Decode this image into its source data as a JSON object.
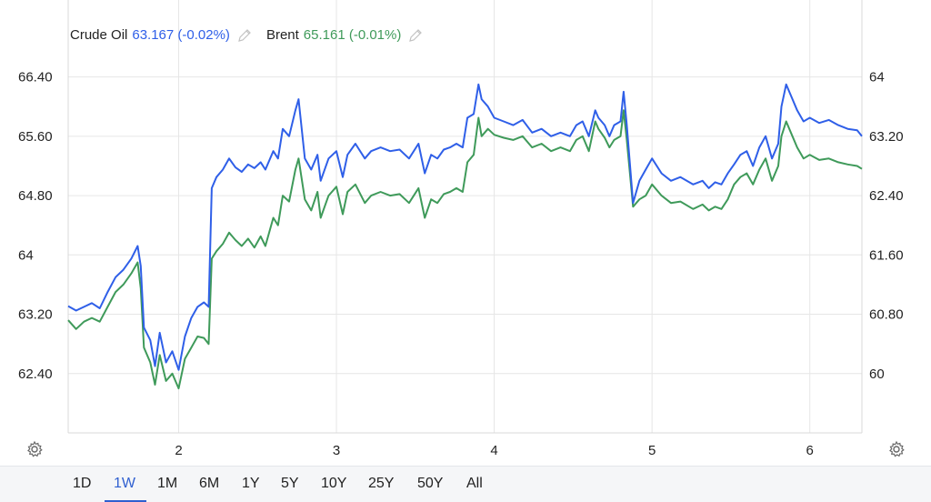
{
  "legend": {
    "series": [
      {
        "name": "Crude Oil",
        "value_text": "63.167 (-0.02%)",
        "color": "#2f5fe8"
      },
      {
        "name": "Brent",
        "value_text": "65.161 (-0.01%)",
        "color": "#3f9a5a"
      }
    ],
    "edit_icon": "pencil-icon"
  },
  "range_buttons": [
    {
      "label": "1D",
      "active": false
    },
    {
      "label": "1W",
      "active": true
    },
    {
      "label": "1M",
      "active": false
    },
    {
      "label": "6M",
      "active": false
    },
    {
      "label": "1Y",
      "active": false
    },
    {
      "label": "5Y",
      "active": false
    },
    {
      "label": "10Y",
      "active": false
    },
    {
      "label": "25Y",
      "active": false
    },
    {
      "label": "50Y",
      "active": false
    },
    {
      "label": "All",
      "active": false
    }
  ],
  "settings_icon": "gear-icon",
  "chart_data": {
    "type": "line",
    "grid": true,
    "x_ticks": [
      "2",
      "3",
      "4",
      "5",
      "6"
    ],
    "x_tick_positions": [
      2,
      3,
      4,
      5,
      6
    ],
    "x_range": [
      1.3,
      6.33
    ],
    "left_axis": {
      "ticks": [
        "62.40",
        "63.20",
        "64",
        "64.80",
        "65.60",
        "66.40"
      ],
      "ylim": [
        61.6,
        66.8
      ]
    },
    "right_axis": {
      "ticks": [
        "60",
        "60.80",
        "61.60",
        "62.40",
        "63.20",
        "64"
      ],
      "ylim": [
        59.2,
        64.4
      ]
    },
    "series": [
      {
        "name": "Crude Oil",
        "axis": "right",
        "color": "#2f5fe8",
        "points": [
          [
            1.3,
            60.91
          ],
          [
            1.35,
            60.85
          ],
          [
            1.4,
            60.9
          ],
          [
            1.45,
            60.95
          ],
          [
            1.5,
            60.88
          ],
          [
            1.55,
            61.1
          ],
          [
            1.6,
            61.3
          ],
          [
            1.65,
            61.4
          ],
          [
            1.7,
            61.55
          ],
          [
            1.74,
            61.72
          ],
          [
            1.76,
            61.45
          ],
          [
            1.78,
            60.62
          ],
          [
            1.82,
            60.45
          ],
          [
            1.85,
            60.1
          ],
          [
            1.88,
            60.55
          ],
          [
            1.92,
            60.15
          ],
          [
            1.96,
            60.3
          ],
          [
            2.0,
            60.05
          ],
          [
            2.04,
            60.5
          ],
          [
            2.08,
            60.75
          ],
          [
            2.12,
            60.9
          ],
          [
            2.16,
            60.96
          ],
          [
            2.19,
            60.9
          ],
          [
            2.21,
            62.5
          ],
          [
            2.24,
            62.65
          ],
          [
            2.28,
            62.75
          ],
          [
            2.32,
            62.9
          ],
          [
            2.36,
            62.78
          ],
          [
            2.4,
            62.72
          ],
          [
            2.44,
            62.82
          ],
          [
            2.48,
            62.77
          ],
          [
            2.52,
            62.85
          ],
          [
            2.55,
            62.75
          ],
          [
            2.6,
            63.0
          ],
          [
            2.63,
            62.9
          ],
          [
            2.66,
            63.3
          ],
          [
            2.7,
            63.2
          ],
          [
            2.74,
            63.55
          ],
          [
            2.76,
            63.7
          ],
          [
            2.8,
            62.9
          ],
          [
            2.84,
            62.75
          ],
          [
            2.88,
            62.95
          ],
          [
            2.9,
            62.6
          ],
          [
            2.95,
            62.9
          ],
          [
            3.0,
            63.0
          ],
          [
            3.04,
            62.65
          ],
          [
            3.07,
            62.95
          ],
          [
            3.12,
            63.1
          ],
          [
            3.18,
            62.9
          ],
          [
            3.22,
            63.0
          ],
          [
            3.28,
            63.05
          ],
          [
            3.34,
            63.0
          ],
          [
            3.4,
            63.02
          ],
          [
            3.46,
            62.9
          ],
          [
            3.52,
            63.1
          ],
          [
            3.56,
            62.7
          ],
          [
            3.6,
            62.95
          ],
          [
            3.64,
            62.9
          ],
          [
            3.68,
            63.02
          ],
          [
            3.72,
            63.05
          ],
          [
            3.76,
            63.1
          ],
          [
            3.8,
            63.05
          ],
          [
            3.83,
            63.45
          ],
          [
            3.87,
            63.5
          ],
          [
            3.9,
            63.9
          ],
          [
            3.92,
            63.7
          ],
          [
            3.96,
            63.6
          ],
          [
            4.0,
            63.45
          ],
          [
            4.06,
            63.4
          ],
          [
            4.12,
            63.35
          ],
          [
            4.18,
            63.42
          ],
          [
            4.24,
            63.25
          ],
          [
            4.3,
            63.3
          ],
          [
            4.36,
            63.2
          ],
          [
            4.42,
            63.25
          ],
          [
            4.48,
            63.2
          ],
          [
            4.52,
            63.35
          ],
          [
            4.56,
            63.4
          ],
          [
            4.6,
            63.2
          ],
          [
            4.64,
            63.55
          ],
          [
            4.66,
            63.45
          ],
          [
            4.7,
            63.35
          ],
          [
            4.73,
            63.2
          ],
          [
            4.76,
            63.35
          ],
          [
            4.8,
            63.4
          ],
          [
            4.82,
            63.8
          ],
          [
            4.84,
            63.35
          ],
          [
            4.88,
            62.3
          ],
          [
            4.92,
            62.6
          ],
          [
            4.96,
            62.75
          ],
          [
            5.0,
            62.9
          ],
          [
            5.06,
            62.7
          ],
          [
            5.12,
            62.6
          ],
          [
            5.18,
            62.65
          ],
          [
            5.26,
            62.55
          ],
          [
            5.32,
            62.6
          ],
          [
            5.36,
            62.5
          ],
          [
            5.4,
            62.58
          ],
          [
            5.44,
            62.55
          ],
          [
            5.48,
            62.7
          ],
          [
            5.52,
            62.82
          ],
          [
            5.56,
            62.95
          ],
          [
            5.6,
            63.0
          ],
          [
            5.64,
            62.8
          ],
          [
            5.68,
            63.05
          ],
          [
            5.72,
            63.2
          ],
          [
            5.76,
            62.9
          ],
          [
            5.8,
            63.1
          ],
          [
            5.82,
            63.6
          ],
          [
            5.85,
            63.9
          ],
          [
            5.88,
            63.75
          ],
          [
            5.92,
            63.55
          ],
          [
            5.96,
            63.4
          ],
          [
            6.0,
            63.45
          ],
          [
            6.06,
            63.38
          ],
          [
            6.12,
            63.42
          ],
          [
            6.18,
            63.35
          ],
          [
            6.24,
            63.3
          ],
          [
            6.3,
            63.28
          ],
          [
            6.33,
            63.2
          ]
        ]
      },
      {
        "name": "Brent",
        "axis": "left",
        "color": "#3f9a5a",
        "points": [
          [
            1.3,
            63.12
          ],
          [
            1.35,
            63.0
          ],
          [
            1.4,
            63.1
          ],
          [
            1.45,
            63.15
          ],
          [
            1.5,
            63.1
          ],
          [
            1.55,
            63.3
          ],
          [
            1.6,
            63.5
          ],
          [
            1.65,
            63.6
          ],
          [
            1.7,
            63.75
          ],
          [
            1.74,
            63.9
          ],
          [
            1.76,
            63.55
          ],
          [
            1.78,
            62.75
          ],
          [
            1.82,
            62.55
          ],
          [
            1.85,
            62.25
          ],
          [
            1.88,
            62.65
          ],
          [
            1.92,
            62.3
          ],
          [
            1.96,
            62.4
          ],
          [
            2.0,
            62.2
          ],
          [
            2.04,
            62.6
          ],
          [
            2.08,
            62.75
          ],
          [
            2.12,
            62.9
          ],
          [
            2.16,
            62.88
          ],
          [
            2.19,
            62.8
          ],
          [
            2.21,
            63.95
          ],
          [
            2.24,
            64.05
          ],
          [
            2.28,
            64.15
          ],
          [
            2.32,
            64.3
          ],
          [
            2.36,
            64.2
          ],
          [
            2.4,
            64.12
          ],
          [
            2.44,
            64.22
          ],
          [
            2.48,
            64.1
          ],
          [
            2.52,
            64.25
          ],
          [
            2.55,
            64.12
          ],
          [
            2.6,
            64.5
          ],
          [
            2.63,
            64.4
          ],
          [
            2.66,
            64.8
          ],
          [
            2.7,
            64.72
          ],
          [
            2.74,
            65.15
          ],
          [
            2.76,
            65.3
          ],
          [
            2.8,
            64.75
          ],
          [
            2.84,
            64.6
          ],
          [
            2.88,
            64.85
          ],
          [
            2.9,
            64.5
          ],
          [
            2.95,
            64.8
          ],
          [
            3.0,
            64.92
          ],
          [
            3.04,
            64.55
          ],
          [
            3.07,
            64.85
          ],
          [
            3.12,
            64.95
          ],
          [
            3.18,
            64.7
          ],
          [
            3.22,
            64.8
          ],
          [
            3.28,
            64.85
          ],
          [
            3.34,
            64.8
          ],
          [
            3.4,
            64.82
          ],
          [
            3.46,
            64.7
          ],
          [
            3.52,
            64.9
          ],
          [
            3.56,
            64.5
          ],
          [
            3.6,
            64.75
          ],
          [
            3.64,
            64.7
          ],
          [
            3.68,
            64.82
          ],
          [
            3.72,
            64.85
          ],
          [
            3.76,
            64.9
          ],
          [
            3.8,
            64.85
          ],
          [
            3.83,
            65.25
          ],
          [
            3.87,
            65.35
          ],
          [
            3.9,
            65.85
          ],
          [
            3.92,
            65.6
          ],
          [
            3.96,
            65.7
          ],
          [
            4.0,
            65.62
          ],
          [
            4.06,
            65.58
          ],
          [
            4.12,
            65.55
          ],
          [
            4.18,
            65.6
          ],
          [
            4.24,
            65.45
          ],
          [
            4.3,
            65.5
          ],
          [
            4.36,
            65.4
          ],
          [
            4.42,
            65.45
          ],
          [
            4.48,
            65.4
          ],
          [
            4.52,
            65.55
          ],
          [
            4.56,
            65.6
          ],
          [
            4.6,
            65.4
          ],
          [
            4.64,
            65.8
          ],
          [
            4.66,
            65.7
          ],
          [
            4.7,
            65.58
          ],
          [
            4.73,
            65.45
          ],
          [
            4.76,
            65.55
          ],
          [
            4.8,
            65.6
          ],
          [
            4.82,
            65.95
          ],
          [
            4.84,
            65.55
          ],
          [
            4.88,
            64.65
          ],
          [
            4.92,
            64.75
          ],
          [
            4.96,
            64.8
          ],
          [
            5.0,
            64.95
          ],
          [
            5.06,
            64.8
          ],
          [
            5.12,
            64.7
          ],
          [
            5.18,
            64.72
          ],
          [
            5.26,
            64.62
          ],
          [
            5.32,
            64.68
          ],
          [
            5.36,
            64.6
          ],
          [
            5.4,
            64.65
          ],
          [
            5.44,
            64.62
          ],
          [
            5.48,
            64.75
          ],
          [
            5.52,
            64.95
          ],
          [
            5.56,
            65.05
          ],
          [
            5.6,
            65.1
          ],
          [
            5.64,
            64.95
          ],
          [
            5.68,
            65.15
          ],
          [
            5.72,
            65.3
          ],
          [
            5.76,
            65.0
          ],
          [
            5.8,
            65.2
          ],
          [
            5.82,
            65.6
          ],
          [
            5.85,
            65.8
          ],
          [
            5.88,
            65.65
          ],
          [
            5.92,
            65.45
          ],
          [
            5.96,
            65.3
          ],
          [
            6.0,
            65.35
          ],
          [
            6.06,
            65.28
          ],
          [
            6.12,
            65.3
          ],
          [
            6.18,
            65.25
          ],
          [
            6.24,
            65.22
          ],
          [
            6.3,
            65.2
          ],
          [
            6.33,
            65.16
          ]
        ]
      }
    ]
  }
}
